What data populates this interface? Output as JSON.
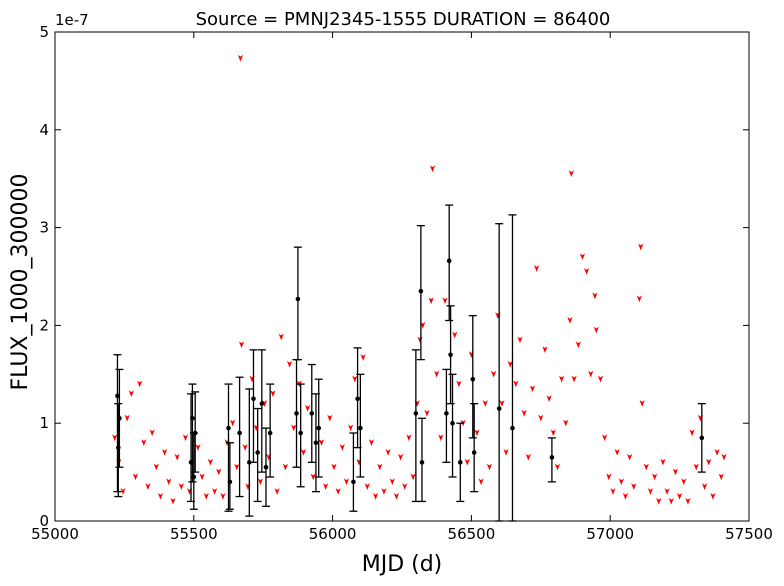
{
  "chart_data": {
    "type": "scatter",
    "title": "Source = PMNJ2345-1555 DURATION = 86400",
    "xlabel": "MJD (d)",
    "ylabel": "FLUX_1000_300000",
    "y_offset_label": "1e-7",
    "xlim": [
      55000,
      57500
    ],
    "ylim": [
      0,
      5
    ],
    "y_scale_factor": 1e-07,
    "x_ticks": [
      55000,
      55500,
      56000,
      56500,
      57000,
      57500
    ],
    "y_ticks": [
      0,
      1,
      2,
      3,
      4,
      5
    ],
    "grid": false,
    "colors": {
      "detections": "#000000",
      "upper_limits": "#ff0000",
      "axes": "#000000"
    },
    "series": [
      {
        "marker": "point-with-errorbars",
        "points": [
          {
            "x": 55225,
            "y": 1.28,
            "lo": 0.3,
            "hi": 1.7
          },
          {
            "x": 55228,
            "y": 0.75,
            "lo": 0.25,
            "hi": 1.2
          },
          {
            "x": 55232,
            "y": 1.05,
            "lo": 0.55,
            "hi": 1.55
          },
          {
            "x": 55490,
            "y": 0.6,
            "lo": 0.2,
            "hi": 1.3
          },
          {
            "x": 55495,
            "y": 1.05,
            "lo": 0.4,
            "hi": 1.4
          },
          {
            "x": 55500,
            "y": 0.45,
            "lo": 0.12,
            "hi": 0.9
          },
          {
            "x": 55505,
            "y": 0.9,
            "lo": 0.5,
            "hi": 1.32
          },
          {
            "x": 55625,
            "y": 0.95,
            "lo": 0.1,
            "hi": 1.4
          },
          {
            "x": 55630,
            "y": 0.4,
            "lo": 0.12,
            "hi": 0.8
          },
          {
            "x": 55665,
            "y": 0.9,
            "lo": 0.25,
            "hi": 1.47
          },
          {
            "x": 55700,
            "y": 0.6,
            "lo": 0.05,
            "hi": 1.35
          },
          {
            "x": 55715,
            "y": 1.25,
            "lo": 0.6,
            "hi": 1.75
          },
          {
            "x": 55730,
            "y": 0.7,
            "lo": 0.2,
            "hi": 1.15
          },
          {
            "x": 55745,
            "y": 1.2,
            "lo": 0.5,
            "hi": 1.75
          },
          {
            "x": 55760,
            "y": 0.55,
            "lo": 0.15,
            "hi": 0.95
          },
          {
            "x": 55775,
            "y": 0.9,
            "lo": 0.45,
            "hi": 1.4
          },
          {
            "x": 55870,
            "y": 1.1,
            "lo": 0.55,
            "hi": 1.65
          },
          {
            "x": 55875,
            "y": 2.27,
            "lo": 1.65,
            "hi": 2.8
          },
          {
            "x": 55885,
            "y": 0.9,
            "lo": 0.35,
            "hi": 1.4
          },
          {
            "x": 55925,
            "y": 1.1,
            "lo": 0.6,
            "hi": 1.6
          },
          {
            "x": 55940,
            "y": 0.8,
            "lo": 0.3,
            "hi": 1.3
          },
          {
            "x": 55950,
            "y": 0.95,
            "lo": 0.45,
            "hi": 1.45
          },
          {
            "x": 56075,
            "y": 0.4,
            "lo": 0.1,
            "hi": 0.9
          },
          {
            "x": 56090,
            "y": 1.25,
            "lo": 0.75,
            "hi": 1.77
          },
          {
            "x": 56100,
            "y": 0.95,
            "lo": 0.45,
            "hi": 1.5
          },
          {
            "x": 56300,
            "y": 1.1,
            "lo": 0.2,
            "hi": 1.75
          },
          {
            "x": 56318,
            "y": 2.35,
            "lo": 1.65,
            "hi": 3.02
          },
          {
            "x": 56322,
            "y": 0.6,
            "lo": 0.2,
            "hi": 1.05
          },
          {
            "x": 56410,
            "y": 1.1,
            "lo": 0.6,
            "hi": 1.55
          },
          {
            "x": 56420,
            "y": 2.66,
            "lo": 2.05,
            "hi": 3.23
          },
          {
            "x": 56425,
            "y": 1.7,
            "lo": 1.2,
            "hi": 2.2
          },
          {
            "x": 56432,
            "y": 1.0,
            "lo": 0.45,
            "hi": 1.5
          },
          {
            "x": 56460,
            "y": 0.6,
            "lo": 0.2,
            "hi": 1.0
          },
          {
            "x": 56505,
            "y": 1.45,
            "lo": 0.85,
            "hi": 2.1
          },
          {
            "x": 56510,
            "y": 0.7,
            "lo": 0.3,
            "hi": 1.2
          },
          {
            "x": 56600,
            "y": 1.15,
            "lo": 0.0,
            "hi": 3.04
          },
          {
            "x": 56648,
            "y": 0.95,
            "lo": 0.0,
            "hi": 3.13
          },
          {
            "x": 56790,
            "y": 0.65,
            "lo": 0.4,
            "hi": 0.85
          },
          {
            "x": 57330,
            "y": 0.85,
            "lo": 0.5,
            "hi": 1.2
          }
        ]
      },
      {
        "marker": "upper-limit-arrow",
        "points": [
          {
            "x": 55215,
            "y": 0.85
          },
          {
            "x": 55230,
            "y": 0.6
          },
          {
            "x": 55245,
            "y": 0.3
          },
          {
            "x": 55260,
            "y": 1.05
          },
          {
            "x": 55275,
            "y": 1.3
          },
          {
            "x": 55290,
            "y": 0.45
          },
          {
            "x": 55305,
            "y": 1.4
          },
          {
            "x": 55320,
            "y": 0.8
          },
          {
            "x": 55335,
            "y": 0.35
          },
          {
            "x": 55350,
            "y": 0.9
          },
          {
            "x": 55365,
            "y": 0.55
          },
          {
            "x": 55380,
            "y": 0.25
          },
          {
            "x": 55395,
            "y": 0.7
          },
          {
            "x": 55410,
            "y": 0.4
          },
          {
            "x": 55425,
            "y": 0.2
          },
          {
            "x": 55440,
            "y": 0.65
          },
          {
            "x": 55455,
            "y": 0.35
          },
          {
            "x": 55470,
            "y": 0.85
          },
          {
            "x": 55485,
            "y": 0.3
          },
          {
            "x": 55515,
            "y": 0.75
          },
          {
            "x": 55530,
            "y": 0.45
          },
          {
            "x": 55545,
            "y": 0.25
          },
          {
            "x": 55560,
            "y": 0.6
          },
          {
            "x": 55575,
            "y": 0.3
          },
          {
            "x": 55590,
            "y": 0.5
          },
          {
            "x": 55605,
            "y": 0.25
          },
          {
            "x": 55620,
            "y": 0.8
          },
          {
            "x": 55640,
            "y": 1.0
          },
          {
            "x": 55655,
            "y": 0.55
          },
          {
            "x": 55668,
            "y": 4.73
          },
          {
            "x": 55672,
            "y": 1.8
          },
          {
            "x": 55685,
            "y": 0.75
          },
          {
            "x": 55695,
            "y": 0.35
          },
          {
            "x": 55710,
            "y": 1.45
          },
          {
            "x": 55725,
            "y": 0.95
          },
          {
            "x": 55740,
            "y": 0.4
          },
          {
            "x": 55755,
            "y": 1.2
          },
          {
            "x": 55770,
            "y": 0.65
          },
          {
            "x": 55785,
            "y": 1.3
          },
          {
            "x": 55800,
            "y": 0.3
          },
          {
            "x": 55815,
            "y": 1.88
          },
          {
            "x": 55830,
            "y": 0.55
          },
          {
            "x": 55845,
            "y": 1.6
          },
          {
            "x": 55860,
            "y": 0.95
          },
          {
            "x": 55880,
            "y": 1.4
          },
          {
            "x": 55895,
            "y": 0.7
          },
          {
            "x": 55910,
            "y": 1.15
          },
          {
            "x": 55930,
            "y": 0.45
          },
          {
            "x": 55960,
            "y": 0.8
          },
          {
            "x": 55975,
            "y": 0.35
          },
          {
            "x": 55990,
            "y": 1.05
          },
          {
            "x": 56005,
            "y": 0.55
          },
          {
            "x": 56020,
            "y": 0.3
          },
          {
            "x": 56035,
            "y": 0.75
          },
          {
            "x": 56050,
            "y": 0.4
          },
          {
            "x": 56065,
            "y": 0.95
          },
          {
            "x": 56080,
            "y": 1.45
          },
          {
            "x": 56095,
            "y": 0.6
          },
          {
            "x": 56110,
            "y": 1.67
          },
          {
            "x": 56125,
            "y": 0.35
          },
          {
            "x": 56140,
            "y": 0.8
          },
          {
            "x": 56155,
            "y": 0.25
          },
          {
            "x": 56170,
            "y": 0.55
          },
          {
            "x": 56185,
            "y": 0.3
          },
          {
            "x": 56200,
            "y": 0.7
          },
          {
            "x": 56215,
            "y": 0.4
          },
          {
            "x": 56230,
            "y": 0.25
          },
          {
            "x": 56245,
            "y": 0.65
          },
          {
            "x": 56260,
            "y": 0.35
          },
          {
            "x": 56275,
            "y": 0.85
          },
          {
            "x": 56290,
            "y": 0.45
          },
          {
            "x": 56305,
            "y": 1.2
          },
          {
            "x": 56315,
            "y": 1.85
          },
          {
            "x": 56325,
            "y": 2.0
          },
          {
            "x": 56340,
            "y": 1.1
          },
          {
            "x": 56355,
            "y": 2.25
          },
          {
            "x": 56360,
            "y": 3.6
          },
          {
            "x": 56375,
            "y": 1.5
          },
          {
            "x": 56390,
            "y": 0.85
          },
          {
            "x": 56405,
            "y": 2.25
          },
          {
            "x": 56440,
            "y": 1.9
          },
          {
            "x": 56455,
            "y": 1.4
          },
          {
            "x": 56470,
            "y": 1.0
          },
          {
            "x": 56485,
            "y": 0.6
          },
          {
            "x": 56500,
            "y": 1.7
          },
          {
            "x": 56520,
            "y": 0.9
          },
          {
            "x": 56535,
            "y": 0.4
          },
          {
            "x": 56550,
            "y": 1.2
          },
          {
            "x": 56565,
            "y": 0.55
          },
          {
            "x": 56580,
            "y": 1.5
          },
          {
            "x": 56595,
            "y": 2.1
          },
          {
            "x": 56610,
            "y": 1.2
          },
          {
            "x": 56625,
            "y": 0.7
          },
          {
            "x": 56640,
            "y": 1.6
          },
          {
            "x": 56660,
            "y": 1.4
          },
          {
            "x": 56675,
            "y": 1.85
          },
          {
            "x": 56690,
            "y": 1.1
          },
          {
            "x": 56705,
            "y": 0.65
          },
          {
            "x": 56720,
            "y": 1.35
          },
          {
            "x": 56735,
            "y": 2.58
          },
          {
            "x": 56750,
            "y": 1.05
          },
          {
            "x": 56765,
            "y": 1.75
          },
          {
            "x": 56780,
            "y": 1.25
          },
          {
            "x": 56795,
            "y": 0.9
          },
          {
            "x": 56810,
            "y": 0.55
          },
          {
            "x": 56825,
            "y": 1.45
          },
          {
            "x": 56840,
            "y": 1.0
          },
          {
            "x": 56855,
            "y": 2.05
          },
          {
            "x": 56860,
            "y": 3.55
          },
          {
            "x": 56870,
            "y": 1.45
          },
          {
            "x": 56885,
            "y": 1.8
          },
          {
            "x": 56900,
            "y": 2.7
          },
          {
            "x": 56915,
            "y": 2.55
          },
          {
            "x": 56930,
            "y": 1.5
          },
          {
            "x": 56945,
            "y": 2.3
          },
          {
            "x": 56950,
            "y": 1.95
          },
          {
            "x": 56965,
            "y": 1.45
          },
          {
            "x": 56980,
            "y": 0.85
          },
          {
            "x": 56995,
            "y": 0.45
          },
          {
            "x": 57010,
            "y": 0.3
          },
          {
            "x": 57025,
            "y": 0.7
          },
          {
            "x": 57040,
            "y": 0.4
          },
          {
            "x": 57055,
            "y": 0.25
          },
          {
            "x": 57070,
            "y": 0.65
          },
          {
            "x": 57085,
            "y": 0.35
          },
          {
            "x": 57105,
            "y": 2.27
          },
          {
            "x": 57110,
            "y": 2.8
          },
          {
            "x": 57115,
            "y": 1.2
          },
          {
            "x": 57130,
            "y": 0.55
          },
          {
            "x": 57145,
            "y": 0.3
          },
          {
            "x": 57160,
            "y": 0.45
          },
          {
            "x": 57175,
            "y": 0.2
          },
          {
            "x": 57190,
            "y": 0.6
          },
          {
            "x": 57205,
            "y": 0.3
          },
          {
            "x": 57220,
            "y": 0.2
          },
          {
            "x": 57235,
            "y": 0.5
          },
          {
            "x": 57250,
            "y": 0.25
          },
          {
            "x": 57265,
            "y": 0.4
          },
          {
            "x": 57280,
            "y": 0.2
          },
          {
            "x": 57295,
            "y": 0.9
          },
          {
            "x": 57310,
            "y": 0.55
          },
          {
            "x": 57325,
            "y": 1.05
          },
          {
            "x": 57340,
            "y": 0.35
          },
          {
            "x": 57355,
            "y": 0.6
          },
          {
            "x": 57370,
            "y": 0.25
          },
          {
            "x": 57385,
            "y": 0.7
          },
          {
            "x": 57400,
            "y": 0.45
          },
          {
            "x": 57410,
            "y": 0.65
          }
        ],
        "band_note_free": true
      }
    ]
  }
}
